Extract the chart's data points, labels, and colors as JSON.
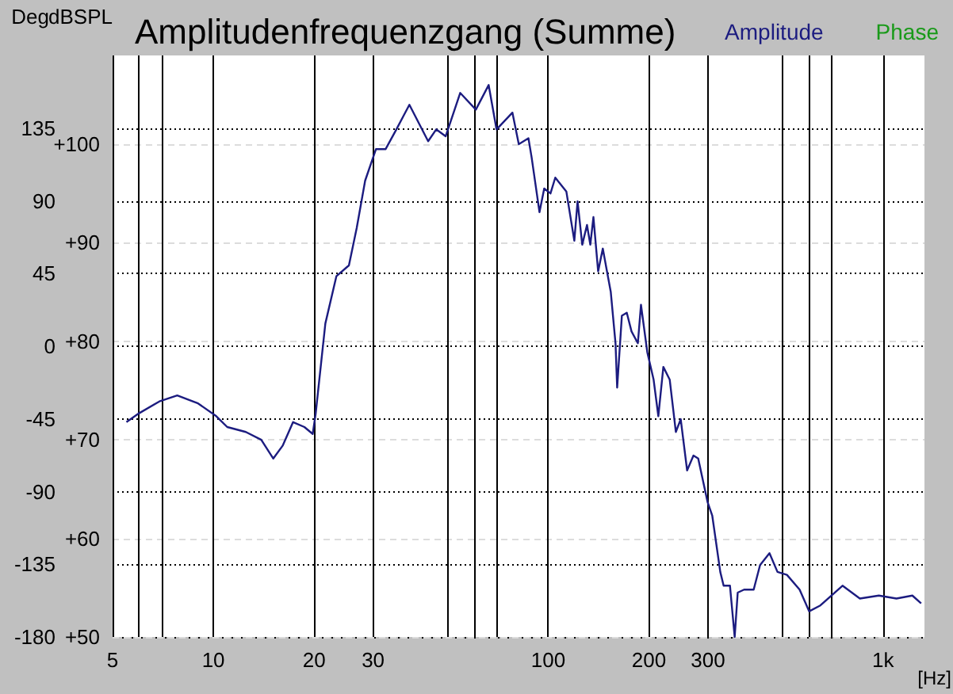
{
  "chart_data": {
    "type": "line",
    "title": "Amplitudenfrequenzgang (Summe)",
    "xlabel": "[Hz]",
    "ylabel": "Deg",
    "y2label": "dBSPL",
    "log": "x",
    "grid": true,
    "legend": "top right",
    "marker": "none",
    "line_style": "solid",
    "xlim": [
      5,
      1330
    ],
    "xticks": [
      5,
      {
        "value": 6,
        "label": null
      },
      {
        "value": 7,
        "label": null
      },
      10,
      20,
      30,
      {
        "value": 50,
        "label": null
      },
      {
        "value": 60,
        "label": null
      },
      {
        "value": 70,
        "label": null
      },
      100,
      200,
      300,
      {
        "value": 500,
        "label": null
      },
      {
        "value": 600,
        "label": null
      },
      {
        "value": 700,
        "label": null
      },
      {
        "value": 1000,
        "label": "1k"
      }
    ],
    "ylim": [
      -180,
      180
    ],
    "yticks": [
      -180,
      -135,
      -90,
      -45,
      0,
      45,
      90,
      135
    ],
    "y2lim": [
      50,
      109
    ],
    "y2ticks": [
      {
        "value": 50,
        "label": "+50"
      },
      {
        "value": 60,
        "label": "+60"
      },
      {
        "value": 70,
        "label": "+70"
      },
      {
        "value": 80,
        "label": "+80"
      },
      {
        "value": 90,
        "label": "+90"
      },
      {
        "value": 100,
        "label": "+100"
      }
    ],
    "x": [
      5.5,
      6.0,
      6.9,
      7.8,
      9.0,
      10.2,
      11.0,
      12.5,
      13.9,
      15.1,
      16.1,
      17.3,
      18.7,
      19.8,
      20.2,
      21.6,
      23.3,
      25.4,
      26.8,
      28.4,
      30.6,
      32.7,
      35.2,
      38.5,
      43.8,
      46.3,
      49.4,
      54.6,
      60.8,
      66.4,
      70.1,
      78.2,
      81.7,
      87.3,
      89.2,
      94.2,
      97.3,
      101.6,
      105.0,
      113.3,
      119.7,
      122.4,
      126.4,
      130.6,
      133.6,
      136.5,
      141.0,
      145.6,
      153.8,
      158.9,
      160.7,
      166.0,
      171.7,
      177.4,
      185.3,
      189.3,
      197.7,
      206.5,
      213.3,
      220.8,
      230.7,
      240.6,
      248.8,
      260.0,
      271.6,
      280.6,
      299.2,
      309.1,
      326.6,
      334.2,
      349.1,
      360.6,
      368.2,
      384.7,
      410.9,
      429.4,
      458.1,
      484.0,
      516.6,
      563.6,
      602,
      650,
      757,
      853,
      972,
      1097,
      1224,
      1300
    ],
    "series": [
      {
        "name": "Amplitude",
        "color": "#1c1c80",
        "axis": "y2",
        "values": [
          71.8,
          72.7,
          73.9,
          74.5,
          73.7,
          72.4,
          71.3,
          70.8,
          70.0,
          68.1,
          69.4,
          71.8,
          71.3,
          70.6,
          72.6,
          81.8,
          86.6,
          87.7,
          91.5,
          96.3,
          99.5,
          99.5,
          101.5,
          104.0,
          100.3,
          101.5,
          100.8,
          105.2,
          103.5,
          106.0,
          101.5,
          103.2,
          100.0,
          100.6,
          98.7,
          93.1,
          95.5,
          95.0,
          96.6,
          95.2,
          90.2,
          94.2,
          89.8,
          91.8,
          89.8,
          92.6,
          87.1,
          89.4,
          85.0,
          79.8,
          75.3,
          82.6,
          82.9,
          81.0,
          79.8,
          83.7,
          78.9,
          76.1,
          72.4,
          77.4,
          76.1,
          70.8,
          72.1,
          66.9,
          68.4,
          68.1,
          63.7,
          62.3,
          56.6,
          55.2,
          55.2,
          50.0,
          54.5,
          54.8,
          54.8,
          57.3,
          58.5,
          56.6,
          56.3,
          54.8,
          52.6,
          53.2,
          55.2,
          53.9,
          54.2,
          53.9,
          54.2,
          53.4
        ]
      },
      {
        "name": "Phase",
        "color": "#1a9a1a",
        "axis": "y",
        "values": [
          null,
          null,
          null,
          null,
          null,
          null,
          null,
          null,
          null,
          null,
          null,
          null,
          null,
          null,
          null,
          null,
          null,
          null,
          null,
          null,
          null,
          null,
          null,
          null,
          null,
          null,
          null,
          null,
          null,
          null,
          null,
          null,
          null,
          null,
          null,
          null,
          null,
          null,
          null,
          null,
          null,
          null,
          null,
          null,
          null,
          null,
          null,
          null,
          null,
          null,
          null,
          null,
          null,
          null,
          null,
          null,
          null,
          null,
          null,
          null,
          null,
          null,
          null,
          null,
          null,
          null,
          null,
          null,
          null,
          null,
          null,
          null,
          null,
          null,
          null,
          null,
          null,
          null,
          null,
          null,
          null,
          null,
          null,
          null,
          null,
          null,
          null,
          null
        ]
      }
    ]
  }
}
